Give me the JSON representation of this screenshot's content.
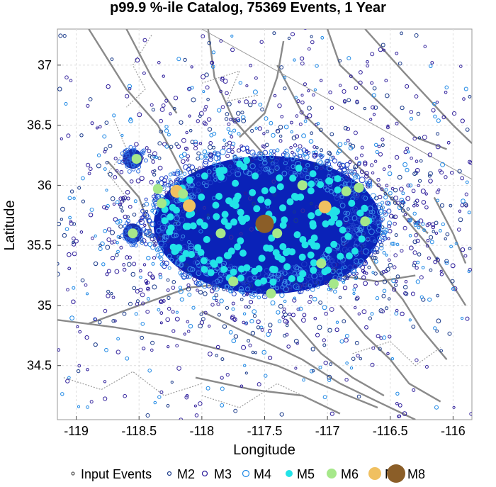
{
  "chart_data": {
    "type": "scatter",
    "title": "p99.9 %-ile Catalog, 75369 Events, 1 Year",
    "xlabel": "Longitude",
    "ylabel": "Latitude",
    "xlim": [
      -119.15,
      -115.85
    ],
    "ylim": [
      34.05,
      37.3
    ],
    "xticks": [
      -119,
      -118.5,
      -118,
      -117.5,
      -117,
      -116.5,
      -116
    ],
    "xtick_labels": [
      "-119",
      "-118.5",
      "-118",
      "-117.5",
      "-117",
      "-116.5",
      "-116"
    ],
    "yticks": [
      34.5,
      35,
      35.5,
      36,
      36.5,
      37
    ],
    "ytick_labels": [
      "34.5",
      "35",
      "35.5",
      "36",
      "36.5",
      "37"
    ],
    "grid": true,
    "legend_position": "bottom",
    "legend": [
      {
        "label": "Input Events",
        "color": "#555555",
        "style": "hollow",
        "size": 2
      },
      {
        "label": "M2",
        "color": "#1a3a8a",
        "style": "hollow",
        "size": 2.5
      },
      {
        "label": "M3",
        "color": "#2a1a9a",
        "style": "hollow",
        "size": 3.5
      },
      {
        "label": "M4",
        "color": "#1e88e5",
        "style": "hollow",
        "size": 4.5
      },
      {
        "label": "M5",
        "color": "#22e3e8",
        "style": "filled",
        "size": 5
      },
      {
        "label": "M6",
        "color": "#a6e88a",
        "style": "filled",
        "size": 7
      },
      {
        "label": "M7",
        "color": "#f0c060",
        "style": "filled",
        "size": 9
      },
      {
        "label": "M8",
        "color": "#8b5e28",
        "style": "filled",
        "size": 13
      }
    ],
    "cluster": {
      "center_lon": -117.5,
      "center_lat": 35.7,
      "core_color": "#0a22b8"
    },
    "sub_clusters": [
      {
        "lon": -118.55,
        "lat": 36.22
      },
      {
        "lon": -118.55,
        "lat": 35.6
      }
    ],
    "series": [
      {
        "name": "M8",
        "points": [
          {
            "x": -117.5,
            "y": 35.68
          }
        ]
      },
      {
        "name": "M7",
        "points": [
          {
            "x": -118.2,
            "y": 35.95
          },
          {
            "x": -118.1,
            "y": 35.83
          },
          {
            "x": -117.02,
            "y": 35.82
          }
        ]
      },
      {
        "name": "M6",
        "points": [
          {
            "x": -118.52,
            "y": 36.22
          },
          {
            "x": -118.55,
            "y": 35.6
          },
          {
            "x": -118.35,
            "y": 35.97
          },
          {
            "x": -118.32,
            "y": 35.85
          },
          {
            "x": -118.15,
            "y": 35.93
          },
          {
            "x": -117.4,
            "y": 35.6
          },
          {
            "x": -116.95,
            "y": 35.18
          },
          {
            "x": -116.85,
            "y": 35.95
          },
          {
            "x": -116.75,
            "y": 35.98
          },
          {
            "x": -116.7,
            "y": 35.7
          },
          {
            "x": -117.75,
            "y": 35.2
          },
          {
            "x": -117.2,
            "y": 36.0
          },
          {
            "x": -117.05,
            "y": 35.35
          },
          {
            "x": -117.85,
            "y": 35.6
          },
          {
            "x": -117.45,
            "y": 35.1
          }
        ]
      }
    ]
  }
}
